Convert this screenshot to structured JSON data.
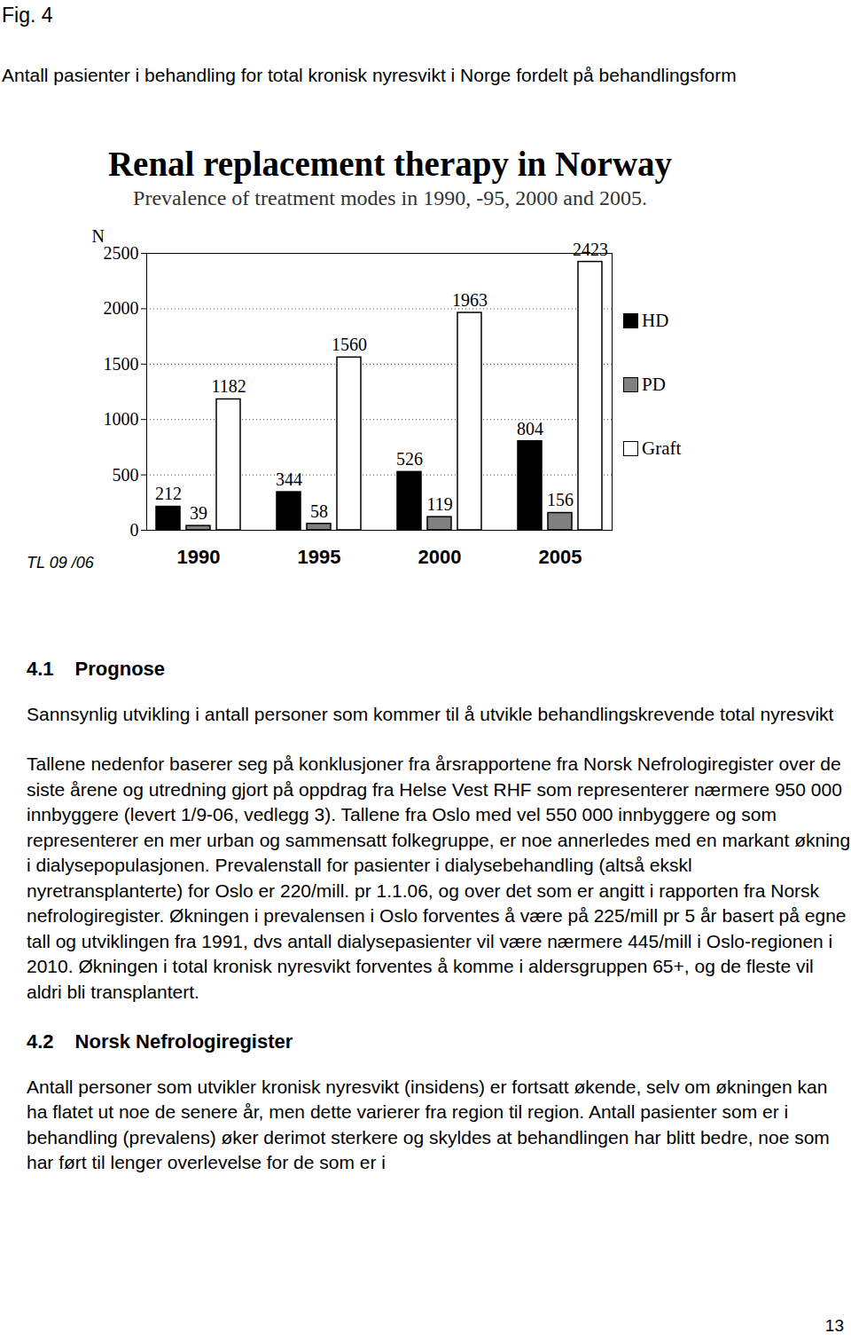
{
  "figure": {
    "label": "Fig. 4",
    "caption": "Antall pasienter i behandling for total kronisk nyresvikt i Norge fordelt på behandlingsform"
  },
  "chart_data": {
    "type": "bar",
    "title": "Renal replacement therapy in Norway",
    "subtitle": "Prevalence of treatment modes  in 1990, -95, 2000 and 2005.",
    "y_label": "N",
    "annotation": "TL 09 /06",
    "categories": [
      "1990",
      "1995",
      "2000",
      "2005"
    ],
    "series": [
      {
        "name": "HD",
        "color": "#000000",
        "values": [
          212,
          344,
          526,
          804
        ]
      },
      {
        "name": "PD",
        "color": "#808080",
        "values": [
          39,
          58,
          119,
          156
        ]
      },
      {
        "name": "Graft",
        "color": "#ffffff",
        "values": [
          1182,
          1560,
          1963,
          2423
        ]
      }
    ],
    "ylim": [
      0,
      2500
    ],
    "yticks": [
      0,
      500,
      1000,
      1500,
      2000,
      2500
    ],
    "grid": true,
    "legend": "right",
    "data_labels": true
  },
  "sections": [
    {
      "number": "4.1",
      "heading": "Prognose",
      "paragraphs": [
        "Sannsynlig utvikling i antall personer som kommer til å utvikle behandlingskrevende total nyresvikt",
        "Tallene nedenfor baserer seg på konklusjoner fra årsrapportene fra Norsk Nefrologiregister over de siste årene og utredning gjort på oppdrag fra Helse Vest RHF som representerer nærmere 950 000 innbyggere (levert 1/9-06, vedlegg 3). Tallene fra Oslo med vel 550 000 innbyggere og som representerer en mer urban og sammensatt folkegruppe, er noe annerledes med en markant økning i dialysepopulasjonen. Prevalenstall for pasienter i dialysebehandling (altså ekskl nyretransplanterte) for Oslo er 220/mill. pr 1.1.06, og over det som er angitt i rapporten fra Norsk nefrologiregister. Økningen i prevalensen i Oslo forventes å være  på 225/mill pr 5 år basert på egne tall og utviklingen fra 1991, dvs antall dialysepasienter vil være nærmere 445/mill i Oslo-regionen i 2010. Økningen i total kronisk nyresvikt forventes å komme i aldersgruppen 65+, og de fleste vil aldri bli transplantert."
      ]
    },
    {
      "number": "4.2",
      "heading": "Norsk Nefrologiregister",
      "paragraphs": [
        "Antall personer som utvikler kronisk nyresvikt (insidens) er fortsatt økende, selv om økningen kan ha flatet ut noe de senere år, men dette varierer fra region til region. Antall pasienter som er i behandling (prevalens) øker derimot sterkere og skyldes at behandlingen har blitt bedre, noe som har ført til lenger overlevelse for de som er i"
      ]
    }
  ],
  "page_number": "13"
}
